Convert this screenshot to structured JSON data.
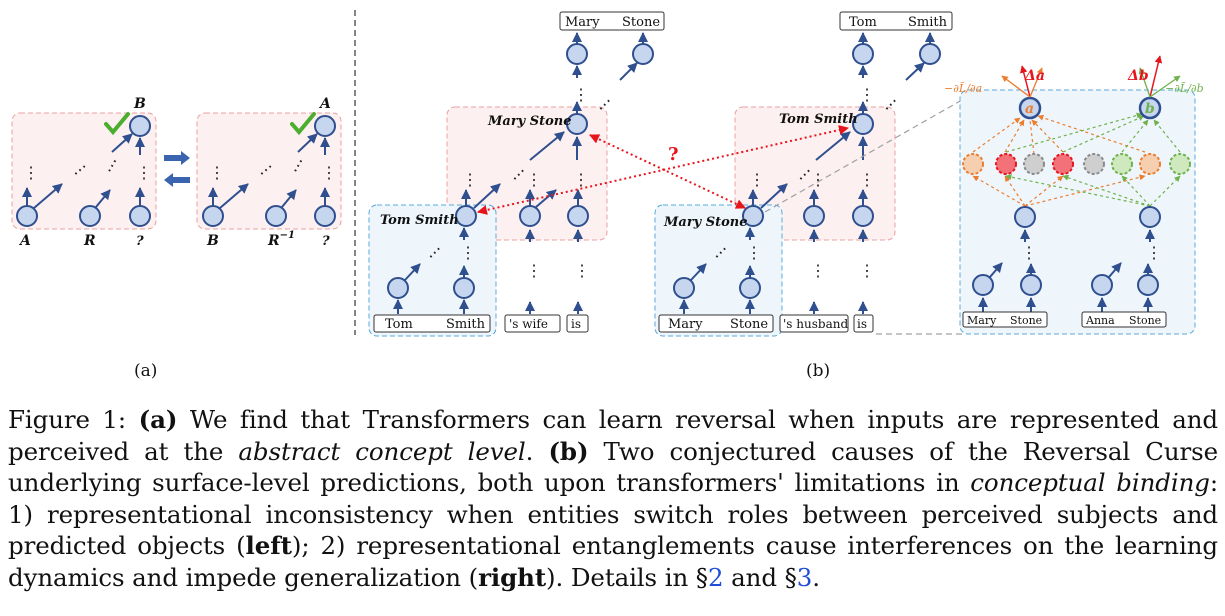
{
  "panel_a": {
    "label": "(a)",
    "left_box": {
      "top": "B",
      "bottom": [
        "A",
        "R",
        "?"
      ]
    },
    "right_box": {
      "top": "A",
      "bottom": [
        "B",
        "R",
        "?"
      ],
      "rinv_sup": "−1"
    }
  },
  "panel_b": {
    "label": "(b)",
    "ex1": {
      "output": [
        "Mary",
        "Stone"
      ],
      "concept_top": "Mary Stone",
      "concept_mid": "Tom Smith",
      "input_name": [
        "Tom",
        "Smith"
      ],
      "tokens": [
        "'s wife",
        "is"
      ]
    },
    "ex2": {
      "output": [
        "Tom",
        "Smith"
      ],
      "concept_top": "Tom Smith",
      "concept_mid": "Mary Stone",
      "input_name": [
        "Mary",
        "Stone"
      ],
      "tokens": [
        "'s husband",
        "is"
      ]
    },
    "question": "?",
    "entangle": {
      "node_a": "a",
      "node_b": "b",
      "delta_a": "Δa",
      "delta_b": "Δb",
      "grad_a": "−∂L̃/∂a",
      "grad_b": "−∂L̃/∂b",
      "input1": [
        "Mary",
        "Stone"
      ],
      "input2": [
        "Anna",
        "Stone"
      ]
    }
  },
  "colors": {
    "node_fill": "#c7d6ef",
    "node_stroke": "#2f4f8f",
    "red": "#e8141c",
    "orange": "#ec7d2f",
    "green": "#6fb24b"
  },
  "caption": {
    "figure_label": "Figure 1:",
    "a_tag": "(a)",
    "a_text1": " We find that Transformers can learn reversal when inputs are represented and perceived at the ",
    "a_italic": "abstract concept level",
    "a_text2": ". ",
    "b_tag": "(b)",
    "b_text1": " Two conjectured causes of the Reversal Curse underlying surface-level predictions, both upon transformers' limitations in ",
    "b_italic": "conceptual binding",
    "b_text2": ": 1) representational inconsistency when entities switch roles between perceived subjects and predicted objects (",
    "left_word": "left",
    "b_text3": "); 2) representational entanglements cause interferences on the learning dynamics and impede generalization (",
    "right_word": "right",
    "b_text4": "). Details in §",
    "ref2": "2",
    "b_text5": " and §",
    "ref3": "3",
    "b_text6": "."
  }
}
